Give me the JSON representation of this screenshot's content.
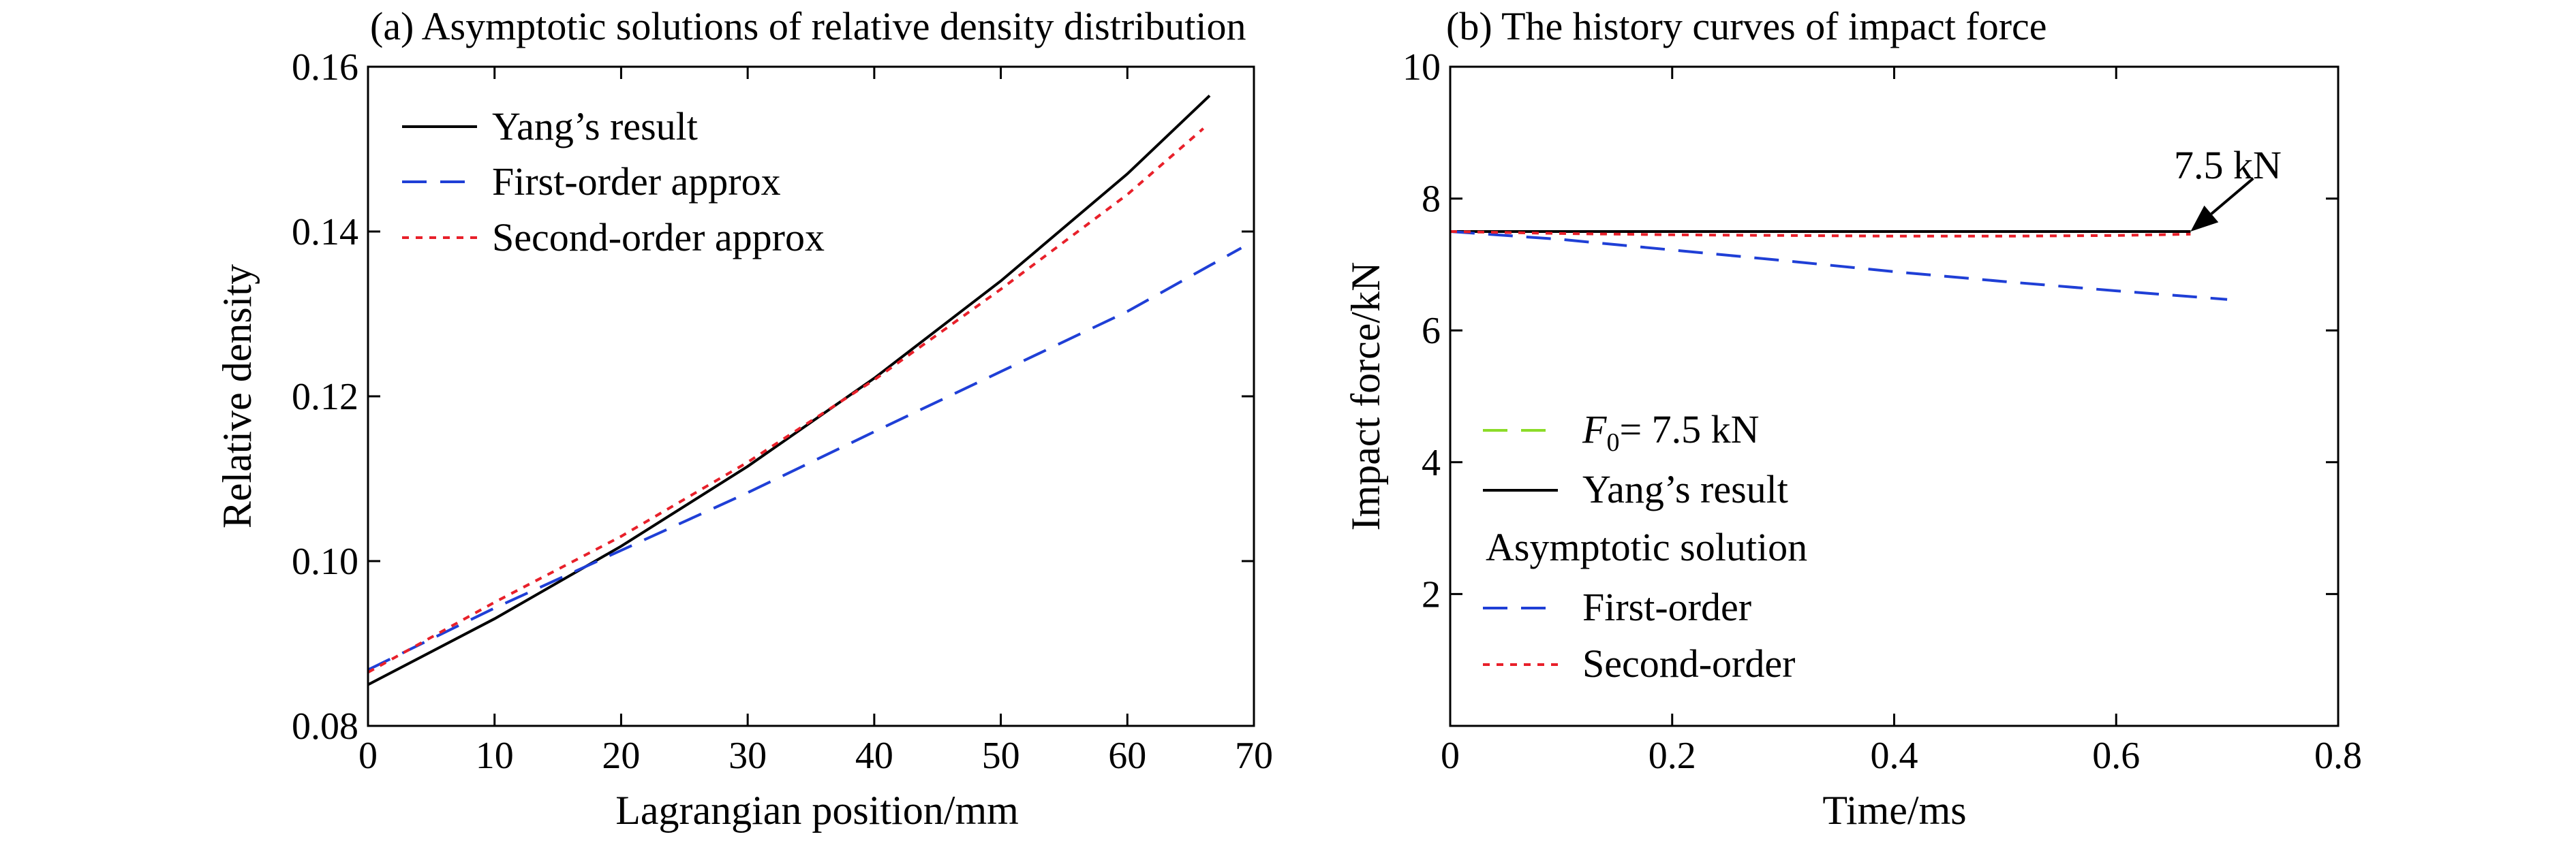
{
  "chart_data": [
    {
      "type": "line",
      "title": "(a) Asymptotic solutions of relative density distribution",
      "xlabel": "Lagrangian position/mm",
      "ylabel": "Relative density",
      "xlim": [
        0,
        70
      ],
      "ylim": [
        0.08,
        0.16
      ],
      "xticks": [
        0,
        10,
        20,
        30,
        40,
        50,
        60,
        70
      ],
      "xtick_labels": [
        "0",
        "10",
        "20",
        "30",
        "40",
        "50",
        "60",
        "70"
      ],
      "yticks": [
        0.08,
        0.1,
        0.12,
        0.14,
        0.16
      ],
      "ytick_labels": [
        "0.08",
        "0.10",
        "0.12",
        "0.14",
        "0.16"
      ],
      "grid": false,
      "legend_position": "top-left",
      "series": [
        {
          "name": "Yang’s result",
          "color": "#000000",
          "style": "solid",
          "x": [
            0,
            10,
            20,
            30,
            40,
            50,
            60,
            66.5
          ],
          "y": [
            0.085,
            0.093,
            0.1018,
            0.1115,
            0.1222,
            0.134,
            0.147,
            0.1565
          ]
        },
        {
          "name": "First-order approx",
          "color": "#1f3fd6",
          "style": "dashed",
          "x": [
            0,
            10,
            20,
            30,
            40,
            50,
            60,
            69
          ],
          "y": [
            0.0868,
            0.0943,
            0.1013,
            0.1083,
            0.1157,
            0.123,
            0.1303,
            0.138
          ]
        },
        {
          "name": "Second-order approx",
          "color": "#e8202a",
          "style": "dotted",
          "x": [
            0,
            10,
            20,
            30,
            40,
            50,
            60,
            66
          ],
          "y": [
            0.0865,
            0.095,
            0.103,
            0.112,
            0.122,
            0.133,
            0.1445,
            0.1525
          ]
        }
      ]
    },
    {
      "type": "line",
      "title": "(b) The history curves of impact force",
      "xlabel": "Time/ms",
      "ylabel": "Impact force/kN",
      "xlim": [
        0,
        0.8
      ],
      "ylim": [
        0,
        10
      ],
      "xticks": [
        0,
        0.2,
        0.4,
        0.6,
        0.8
      ],
      "xtick_labels": [
        "0",
        "0.2",
        "0.4",
        "0.6",
        "0.8"
      ],
      "yticks": [
        2,
        4,
        6,
        8,
        10
      ],
      "ytick_labels": [
        "2",
        "4",
        "6",
        "8",
        "10"
      ],
      "grid": false,
      "legend_position": "bottom-left",
      "legend_heading": "Asymptotic solution",
      "annotation": {
        "text": "7.5 kN",
        "x": 0.667,
        "y": 7.5
      },
      "series": [
        {
          "name_symbol": "F",
          "name_subscript": "0",
          "name_rest": "= 7.5 kN",
          "color": "#8cdc28",
          "style": "dashed",
          "x": [
            0,
            0.667
          ],
          "y": [
            7.5,
            7.5
          ]
        },
        {
          "name": "Yang’s result",
          "color": "#000000",
          "style": "solid",
          "x": [
            0,
            0.1,
            0.2,
            0.3,
            0.4,
            0.5,
            0.6,
            0.667
          ],
          "y": [
            7.5,
            7.5,
            7.5,
            7.5,
            7.5,
            7.5,
            7.5,
            7.5
          ]
        },
        {
          "name": "First-order",
          "color": "#1f3fd6",
          "style": "dashed",
          "x": [
            0,
            0.1,
            0.2,
            0.3,
            0.4,
            0.5,
            0.6,
            0.7
          ],
          "y": [
            7.5,
            7.38,
            7.22,
            7.06,
            6.89,
            6.74,
            6.6,
            6.47
          ]
        },
        {
          "name": "Second-order",
          "color": "#e8202a",
          "style": "dotted",
          "x": [
            0,
            0.1,
            0.2,
            0.3,
            0.4,
            0.5,
            0.6,
            0.667
          ],
          "y": [
            7.5,
            7.47,
            7.45,
            7.44,
            7.43,
            7.43,
            7.44,
            7.46
          ]
        }
      ]
    }
  ]
}
